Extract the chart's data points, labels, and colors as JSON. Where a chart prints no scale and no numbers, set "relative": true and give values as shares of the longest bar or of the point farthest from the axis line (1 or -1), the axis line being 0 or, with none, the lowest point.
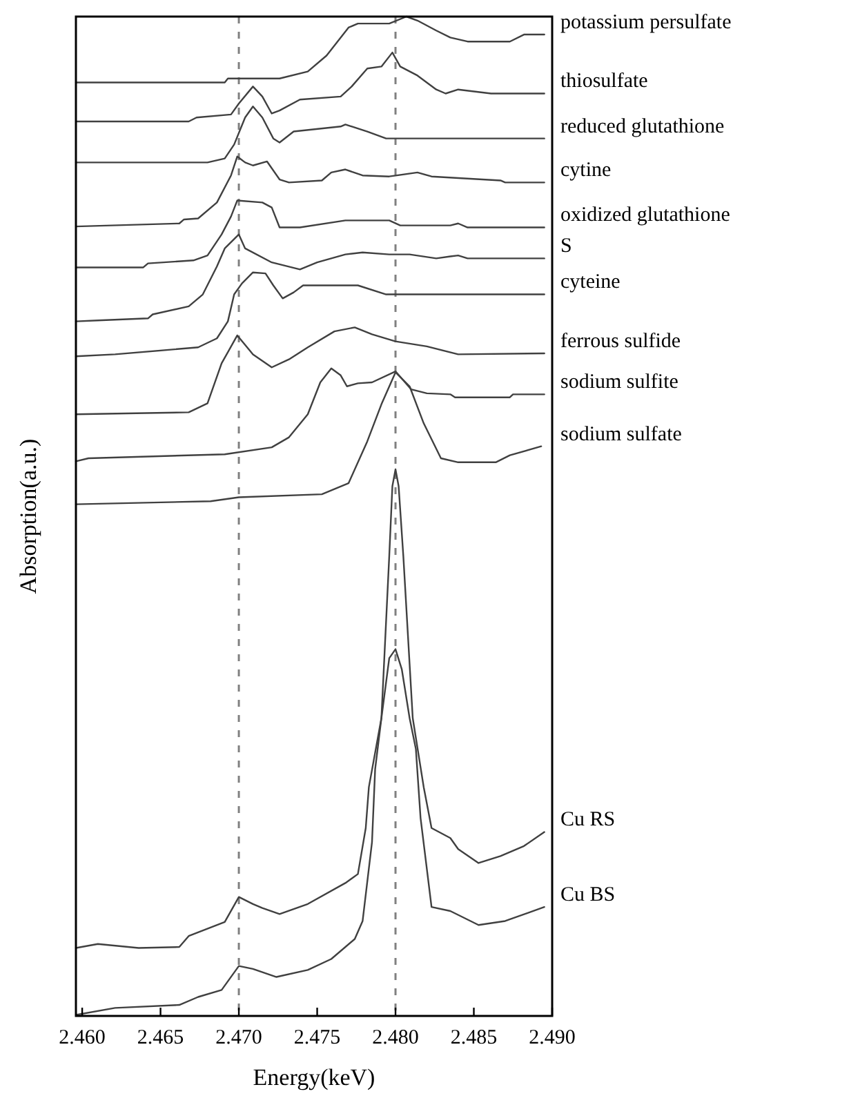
{
  "chart_data": {
    "type": "line",
    "relative": true,
    "xlabel": "Energy(keV)",
    "ylabel": "Absorption(a.u.)",
    "xlim": [
      2.4596,
      2.49
    ],
    "xticks": [
      {
        "value": 2.46,
        "label": "2.460"
      },
      {
        "value": 2.465,
        "label": "2.465"
      },
      {
        "value": 2.47,
        "label": "2.470"
      },
      {
        "value": 2.475,
        "label": "2.475"
      },
      {
        "value": 2.48,
        "label": "2.480"
      },
      {
        "value": 2.485,
        "label": "2.485"
      },
      {
        "value": 2.49,
        "label": "2.490"
      }
    ],
    "ref_lines": [
      {
        "axis": "x",
        "value": 2.47,
        "color": "#808080",
        "line_style": "dashed"
      },
      {
        "axis": "x",
        "value": 2.48,
        "color": "#808080",
        "line_style": "dashed"
      }
    ],
    "series": [
      {
        "name": "potassium persulfate",
        "color": "#404040",
        "x": [
          2.4596,
          2.4691,
          2.4693,
          2.4726,
          2.4744,
          2.4756,
          2.477,
          2.4776,
          2.4796,
          2.4807,
          2.4814,
          2.4826,
          2.4835,
          2.4846,
          2.4873,
          2.4882,
          2.4895
        ],
        "values": [
          0.934,
          0.934,
          0.938,
          0.938,
          0.945,
          0.961,
          0.989,
          0.993,
          0.993,
          1.0,
          0.996,
          0.986,
          0.979,
          0.975,
          0.975,
          0.982,
          0.982
        ]
      },
      {
        "name": "thiosulfate",
        "color": "#404040",
        "x": [
          2.4596,
          2.4668,
          2.4673,
          2.4695,
          2.47,
          2.4709,
          2.4715,
          2.4721,
          2.4726,
          2.4739,
          2.4765,
          2.4772,
          2.4782,
          2.4791,
          2.4798,
          2.4803,
          2.4814,
          2.4826,
          2.4832,
          2.484,
          2.4861,
          2.4895
        ],
        "values": [
          0.895,
          0.895,
          0.899,
          0.902,
          0.913,
          0.93,
          0.92,
          0.903,
          0.906,
          0.917,
          0.92,
          0.93,
          0.948,
          0.95,
          0.964,
          0.95,
          0.941,
          0.927,
          0.923,
          0.927,
          0.923,
          0.923
        ]
      },
      {
        "name": "reduced glutathione",
        "color": "#404040",
        "x": [
          2.4596,
          2.468,
          2.4691,
          2.4697,
          2.4704,
          2.4709,
          2.4715,
          2.4722,
          2.4726,
          2.4735,
          2.4765,
          2.4768,
          2.4782,
          2.4794,
          2.4895
        ],
        "values": [
          0.854,
          0.854,
          0.858,
          0.872,
          0.899,
          0.91,
          0.899,
          0.878,
          0.874,
          0.885,
          0.89,
          0.892,
          0.885,
          0.878,
          0.878
        ]
      },
      {
        "name": "cytine",
        "color": "#404040",
        "x": [
          2.4596,
          2.4662,
          2.4665,
          2.4674,
          2.4686,
          2.4695,
          2.4699,
          2.4704,
          2.4709,
          2.4718,
          2.4726,
          2.4732,
          2.4753,
          2.4759,
          2.4768,
          2.4779,
          2.4796,
          2.4814,
          2.4823,
          2.4867,
          2.487,
          2.4895
        ],
        "values": [
          0.79,
          0.793,
          0.797,
          0.798,
          0.814,
          0.841,
          0.86,
          0.854,
          0.851,
          0.855,
          0.837,
          0.834,
          0.836,
          0.844,
          0.847,
          0.841,
          0.84,
          0.844,
          0.84,
          0.836,
          0.834,
          0.834
        ]
      },
      {
        "name": "oxidized glutathione",
        "color": "#404040",
        "x": [
          2.4596,
          2.4639,
          2.4642,
          2.4671,
          2.468,
          2.4689,
          2.4695,
          2.4699,
          2.4715,
          2.4721,
          2.4726,
          2.4739,
          2.4768,
          2.4796,
          2.4803,
          2.4835,
          2.484,
          2.4846,
          2.4895
        ],
        "values": [
          0.749,
          0.749,
          0.753,
          0.756,
          0.761,
          0.782,
          0.8,
          0.816,
          0.814,
          0.809,
          0.789,
          0.789,
          0.796,
          0.796,
          0.791,
          0.791,
          0.793,
          0.789,
          0.789
        ]
      },
      {
        "name": "S",
        "color": "#404040",
        "x": [
          2.4596,
          2.461,
          2.4642,
          2.4645,
          2.4668,
          2.4677,
          2.4686,
          2.4691,
          2.47,
          2.4704,
          2.4721,
          2.4739,
          2.475,
          2.4768,
          2.4779,
          2.4796,
          2.4809,
          2.4826,
          2.4835,
          2.484,
          2.4846,
          2.4895
        ],
        "values": [
          0.695,
          0.696,
          0.698,
          0.702,
          0.71,
          0.722,
          0.75,
          0.768,
          0.782,
          0.768,
          0.754,
          0.747,
          0.754,
          0.762,
          0.764,
          0.762,
          0.762,
          0.758,
          0.76,
          0.761,
          0.758,
          0.758
        ]
      },
      {
        "name": "cyteine",
        "color": "#404040",
        "x": [
          2.4596,
          2.4621,
          2.4674,
          2.4686,
          2.4693,
          2.4697,
          2.4702,
          2.4709,
          2.4717,
          2.4722,
          2.4728,
          2.4735,
          2.4741,
          2.4776,
          2.4794,
          2.4895
        ],
        "values": [
          0.66,
          0.662,
          0.669,
          0.678,
          0.695,
          0.722,
          0.733,
          0.744,
          0.743,
          0.731,
          0.718,
          0.724,
          0.731,
          0.731,
          0.722,
          0.722
        ]
      },
      {
        "name": "ferrous sulfide",
        "color": "#404040",
        "x": [
          2.4596,
          2.4668,
          2.468,
          2.4689,
          2.4699,
          2.4709,
          2.4721,
          2.4732,
          2.4744,
          2.4761,
          2.4774,
          2.4785,
          2.48,
          2.482,
          2.484,
          2.4895
        ],
        "values": [
          0.602,
          0.604,
          0.613,
          0.653,
          0.681,
          0.662,
          0.649,
          0.657,
          0.669,
          0.685,
          0.689,
          0.682,
          0.675,
          0.67,
          0.662,
          0.663
        ]
      },
      {
        "name": "sodium sulfite",
        "color": "#404040",
        "x": [
          2.4596,
          2.4604,
          2.4691,
          2.4721,
          2.4732,
          2.4744,
          2.4752,
          2.4759,
          2.4765,
          2.4769,
          2.4776,
          2.4785,
          2.48,
          2.481,
          2.482,
          2.4835,
          2.4838,
          2.4873,
          2.4875,
          2.4895
        ],
        "values": [
          0.555,
          0.558,
          0.562,
          0.569,
          0.579,
          0.602,
          0.634,
          0.648,
          0.641,
          0.63,
          0.633,
          0.634,
          0.645,
          0.627,
          0.623,
          0.622,
          0.619,
          0.619,
          0.622,
          0.622
        ]
      },
      {
        "name": "sodium sulfate",
        "color": "#404040",
        "x": [
          2.4596,
          2.4682,
          2.47,
          2.4753,
          2.477,
          2.4782,
          2.4791,
          2.48,
          2.4809,
          2.4818,
          2.4829,
          2.484,
          2.4864,
          2.4873,
          2.4893
        ],
        "values": [
          0.512,
          0.515,
          0.519,
          0.522,
          0.533,
          0.575,
          0.612,
          0.644,
          0.63,
          0.593,
          0.558,
          0.554,
          0.554,
          0.561,
          0.57
        ]
      },
      {
        "name": "Cu RS",
        "color": "#404040",
        "x": [
          2.4596,
          2.461,
          2.4636,
          2.4662,
          2.4668,
          2.4691,
          2.47,
          2.4709,
          2.4715,
          2.4726,
          2.4744,
          2.4768,
          2.4776,
          2.4781,
          2.4783,
          2.4791,
          2.4796,
          2.4798,
          2.48,
          2.4802,
          2.4805,
          2.4811,
          2.4818,
          2.4823,
          2.4835,
          2.484,
          2.4853,
          2.4867,
          2.4882,
          2.4895
        ],
        "values": [
          0.068,
          0.072,
          0.068,
          0.069,
          0.08,
          0.094,
          0.119,
          0.112,
          0.108,
          0.102,
          0.112,
          0.133,
          0.142,
          0.188,
          0.229,
          0.298,
          0.46,
          0.53,
          0.547,
          0.53,
          0.46,
          0.298,
          0.229,
          0.188,
          0.178,
          0.167,
          0.153,
          0.16,
          0.17,
          0.184
        ]
      },
      {
        "name": "Cu BS",
        "color": "#404040",
        "x": [
          2.4596,
          2.4621,
          2.4662,
          2.4674,
          2.4689,
          2.47,
          2.4709,
          2.4724,
          2.4744,
          2.4759,
          2.4774,
          2.4779,
          2.4785,
          2.4787,
          2.4791,
          2.4796,
          2.48,
          2.4804,
          2.4809,
          2.4813,
          2.4816,
          2.4823,
          2.4835,
          2.4853,
          2.487,
          2.4895
        ],
        "values": [
          0.001,
          0.008,
          0.011,
          0.019,
          0.026,
          0.05,
          0.047,
          0.039,
          0.046,
          0.057,
          0.077,
          0.095,
          0.174,
          0.247,
          0.298,
          0.358,
          0.367,
          0.347,
          0.298,
          0.267,
          0.198,
          0.109,
          0.105,
          0.091,
          0.095,
          0.109
        ]
      }
    ]
  }
}
